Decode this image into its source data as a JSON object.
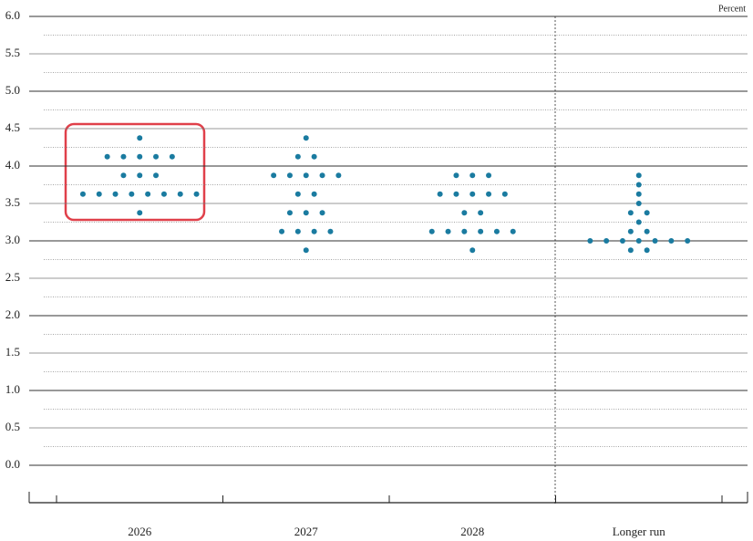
{
  "chart_data": {
    "type": "dot",
    "y_label": "Percent",
    "categories": [
      "2026",
      "2027",
      "2028",
      "Longer run"
    ],
    "values": [
      [
        4.375,
        4.125,
        4.125,
        4.125,
        4.125,
        4.125,
        3.875,
        3.875,
        3.875,
        3.625,
        3.625,
        3.625,
        3.625,
        3.625,
        3.625,
        3.625,
        3.625,
        3.375
      ],
      [
        4.375,
        4.125,
        4.125,
        3.875,
        3.875,
        3.875,
        3.875,
        3.875,
        3.625,
        3.625,
        3.375,
        3.375,
        3.375,
        3.125,
        3.125,
        3.125,
        3.125,
        2.875
      ],
      [
        3.875,
        3.875,
        3.875,
        3.625,
        3.625,
        3.625,
        3.625,
        3.625,
        3.375,
        3.375,
        3.125,
        3.125,
        3.125,
        3.125,
        3.125,
        3.125,
        2.875
      ],
      [
        3.875,
        3.75,
        3.625,
        3.5,
        3.375,
        3.375,
        3.25,
        3.125,
        3.125,
        3.0,
        3.0,
        3.0,
        3.0,
        3.0,
        3.0,
        3.0,
        2.875,
        2.875
      ]
    ],
    "color": "#1a7ba0",
    "ylim": [
      -0.5,
      6.0
    ],
    "yticks": [
      {
        "value": 0,
        "label": "0.0"
      },
      0.5,
      {
        "value": 1,
        "label": "1.0"
      },
      1.5,
      {
        "value": 2,
        "label": "2.0"
      },
      2.5,
      {
        "value": 3,
        "label": "3.0"
      },
      3.5,
      {
        "value": 4,
        "label": "4.0"
      },
      4.5,
      {
        "value": 5,
        "label": "5.0"
      },
      5.5,
      {
        "value": 6,
        "label": "6.0"
      }
    ]
  }
}
